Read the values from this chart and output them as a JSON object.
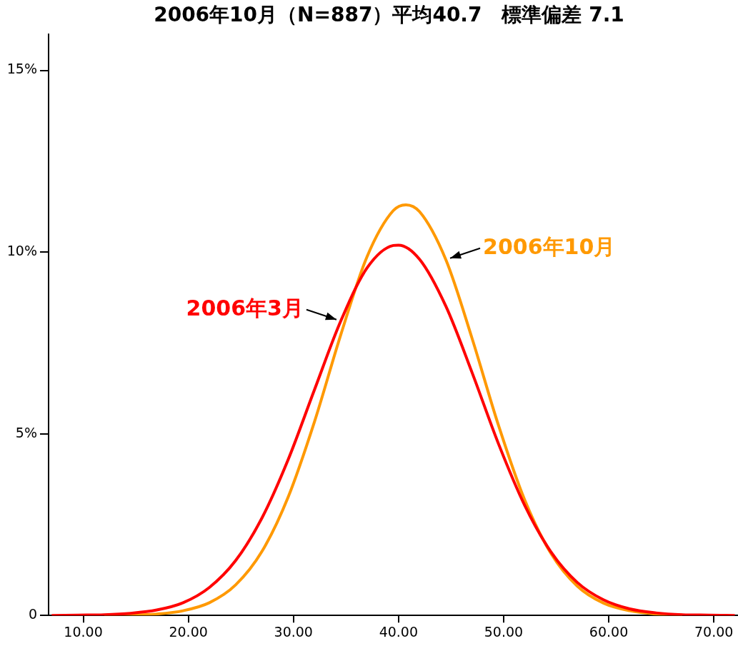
{
  "chart_data": {
    "type": "line",
    "title": "2006年10月（N=887）平均40.7　標準偏差 7.1",
    "series": [
      {
        "name": "2006年3月",
        "color": "#ff0000",
        "x": [
          7,
          9.5,
          12,
          14.5,
          17,
          19.5,
          22,
          24.5,
          27,
          29.5,
          32,
          34.5,
          37,
          39.5,
          40,
          42,
          44.5,
          47,
          49.5,
          52,
          54.5,
          57,
          59.5,
          62,
          64.5,
          67,
          69.5,
          72
        ],
        "values": [
          0,
          0.01,
          0.02,
          0.06,
          0.15,
          0.35,
          0.77,
          1.51,
          2.68,
          4.29,
          6.21,
          8.1,
          9.56,
          10.18,
          10.19,
          9.8,
          8.51,
          6.68,
          4.73,
          3.03,
          1.75,
          0.91,
          0.43,
          0.18,
          0.07,
          0.02,
          0.01,
          0
        ]
      },
      {
        "name": "2006年10月",
        "color": "#ff9900",
        "x": [
          12,
          14.5,
          17,
          19.5,
          22,
          24.5,
          27,
          29.5,
          32,
          34.5,
          37,
          39.5,
          40.7,
          42,
          44.5,
          47,
          49.5,
          52,
          54.5,
          57,
          59.5,
          62,
          64.5,
          67
        ],
        "values": [
          0,
          0.01,
          0.04,
          0.13,
          0.35,
          0.84,
          1.76,
          3.26,
          5.33,
          7.72,
          9.87,
          11.14,
          11.3,
          11.11,
          9.79,
          7.62,
          5.24,
          3.18,
          1.71,
          0.81,
          0.34,
          0.13,
          0.04,
          0.01
        ]
      }
    ],
    "xlim": [
      6.7,
      72.3
    ],
    "xticks": [
      {
        "value": 10,
        "label": "10.00"
      },
      {
        "value": 20,
        "label": "20.00"
      },
      {
        "value": 30,
        "label": "30.00"
      },
      {
        "value": 40,
        "label": "40.00"
      },
      {
        "value": 50,
        "label": "50.00"
      },
      {
        "value": 60,
        "label": "60.00"
      },
      {
        "value": 70,
        "label": "70.00"
      }
    ],
    "ylim": [
      0,
      16
    ],
    "yticks": [
      0,
      {
        "value": 5,
        "label": "5%"
      },
      {
        "value": 10,
        "label": "10%"
      },
      {
        "value": 15,
        "label": "15%"
      }
    ]
  }
}
